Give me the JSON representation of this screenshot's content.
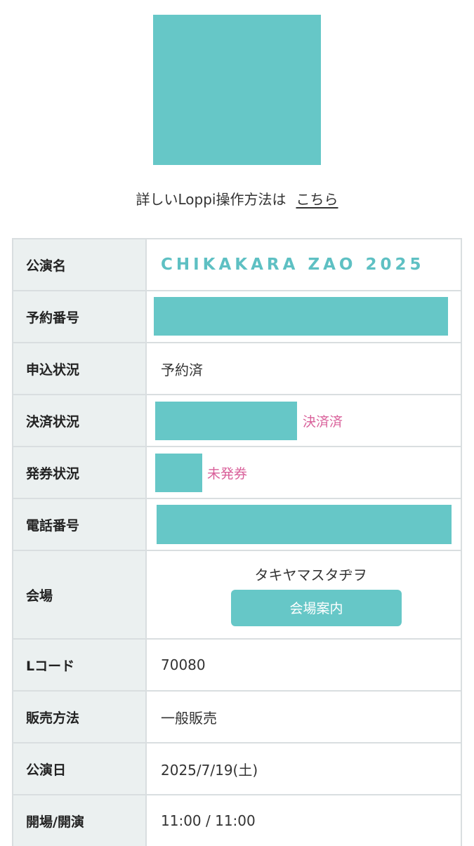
{
  "guide": {
    "text": "詳しいLoppi操作方法は",
    "link": "こちら"
  },
  "table": {
    "rows": [
      {
        "label": "公演名",
        "value": "CHIKAKARA ZAO 2025"
      },
      {
        "label": "予約番号",
        "value": ""
      },
      {
        "label": "申込状況",
        "value": "予約済"
      },
      {
        "label": "決済状況",
        "value": "決済済"
      },
      {
        "label": "発券状況",
        "value": "未発券"
      },
      {
        "label": "電話番号",
        "value": ""
      },
      {
        "label": "会場",
        "value": "タキヤマスタヂヲ",
        "button": "会場案内"
      },
      {
        "label": "Lコード",
        "value": "70080"
      },
      {
        "label": "販売方法",
        "value": "一般販売"
      },
      {
        "label": "公演日",
        "value": "2025/7/19(土)"
      },
      {
        "label": "開場/開演",
        "value": "11:00 / 11:00"
      }
    ]
  },
  "colors": {
    "accent": "#66c7c7",
    "title_text": "#5ec0c3",
    "status_pink": "#d9609a",
    "header_bg": "#ebf0f0",
    "border": "#d9dee0"
  }
}
